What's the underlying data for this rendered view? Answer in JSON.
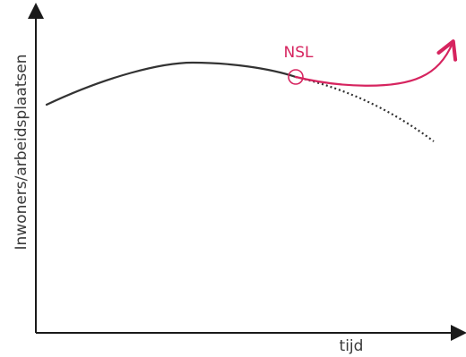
{
  "diagram": {
    "y_axis_label": "Inwoners/arbeidsplaatsen",
    "x_axis_label": "tijd",
    "marker_label": "NSL"
  },
  "colors": {
    "axis": "#1a1a1a",
    "baseline_curve": "#333333",
    "nsl_accent": "#d6245f",
    "text": "#3a3a3a"
  }
}
